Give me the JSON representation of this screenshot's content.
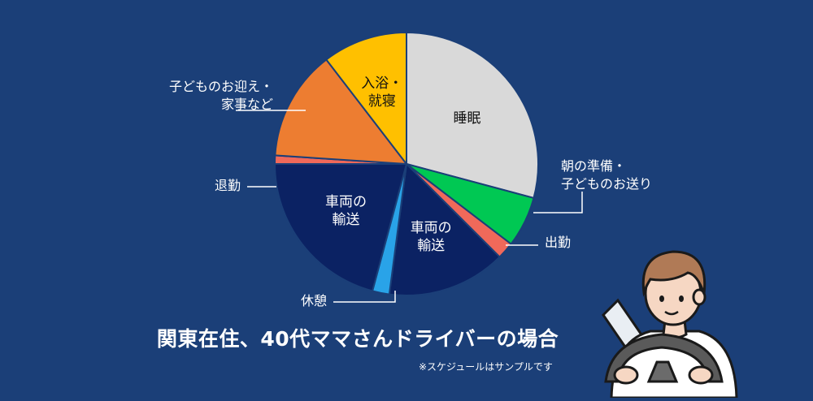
{
  "chart_data": {
    "type": "pie",
    "title": "関東在住、40代ママさんドライバーの場合",
    "note": "※スケジュールはサンプルです",
    "slices": [
      {
        "label": "睡眠",
        "value": 7.0,
        "color": "#d9d9d9",
        "text_color": "#111111",
        "placement": "inside",
        "lines": [
          "睡眠"
        ]
      },
      {
        "label": "朝の準備・子どものお送り",
        "value": 1.5,
        "color": "#00c853",
        "placement": "outside",
        "lines": [
          "朝の準備・",
          "子どものお送り"
        ]
      },
      {
        "label": "出勤",
        "value": 0.5,
        "color": "#f0695a",
        "placement": "outside",
        "lines": [
          "出勤"
        ]
      },
      {
        "label": "車両の輸送",
        "value": 3.5,
        "color": "#0b2263",
        "text_color": "#ffffff",
        "placement": "inside",
        "lines": [
          "車両の",
          "輸送"
        ]
      },
      {
        "label": "休憩",
        "value": 0.5,
        "color": "#29a3e8",
        "placement": "outside",
        "lines": [
          "休憩"
        ]
      },
      {
        "label": "車両の輸送",
        "value": 5.0,
        "color": "#0b2263",
        "text_color": "#ffffff",
        "placement": "inside",
        "lines": [
          "車両の",
          "輸送"
        ]
      },
      {
        "label": "退勤",
        "value": 0.25,
        "color": "#f0695a",
        "placement": "outside",
        "lines": [
          "退勤"
        ]
      },
      {
        "label": "子どものお迎え・家事など",
        "value": 3.25,
        "color": "#ed7d31",
        "placement": "outside",
        "lines": [
          "子どものお迎え・",
          "家事など"
        ]
      },
      {
        "label": "入浴・就寝",
        "value": 2.5,
        "color": "#ffc000",
        "text_color": "#111111",
        "placement": "inside",
        "lines": [
          "入浴・",
          "就寝"
        ]
      }
    ]
  },
  "colors": {
    "background": "#1b3f78",
    "slice_border": "#1b3f78",
    "leader_line": "#ffffff",
    "outside_label": "#ffffff"
  },
  "illustration": {
    "icon": "driver-at-steering-wheel-icon"
  }
}
